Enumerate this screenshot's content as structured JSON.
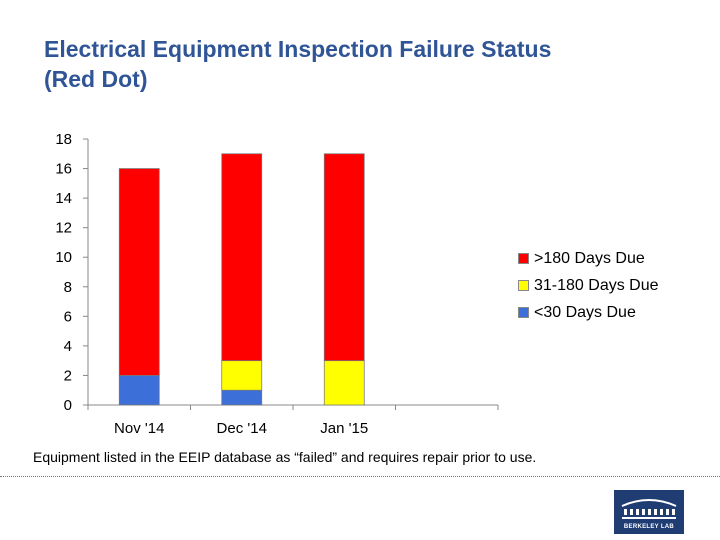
{
  "title": {
    "line1": "Electrical Equipment Inspection Failure Status",
    "line2": "(Red Dot)"
  },
  "colors": {
    "title": "#2f5597",
    "over180": "#ff0000",
    "days31to180": "#ffff00",
    "under30": "#3d6fd8"
  },
  "chart_data": {
    "type": "bar",
    "stacked": true,
    "title": "Electrical Equipment Inspection Failure Status (Red Dot)",
    "xlabel": "",
    "ylabel": "",
    "ylim": [
      0,
      18
    ],
    "yticks": [
      0,
      2,
      4,
      6,
      8,
      10,
      12,
      14,
      16,
      18
    ],
    "grid": false,
    "legend_position": "right",
    "categories": [
      "Nov '14",
      "Dec '14",
      "Jan '15"
    ],
    "series": [
      {
        "name": "<30 Days Due",
        "values": [
          2,
          1,
          0
        ],
        "color": "#3d6fd8"
      },
      {
        "name": "31-180 Days Due",
        "values": [
          0,
          2,
          3
        ],
        "color": "#ffff00"
      },
      {
        "name": ">180 Days Due",
        "values": [
          14,
          14,
          14
        ],
        "color": "#ff0000"
      }
    ]
  },
  "legend": [
    {
      "label": ">180 Days Due",
      "color": "#ff0000"
    },
    {
      "label": "31-180 Days Due",
      "color": "#ffff00"
    },
    {
      "label": "<30 Days Due",
      "color": "#3d6fd8"
    }
  ],
  "footnote": "Equipment listed in the EEIP database as “failed” and requires repair prior to use.",
  "logo": {
    "text": "BERKELEY LAB"
  }
}
